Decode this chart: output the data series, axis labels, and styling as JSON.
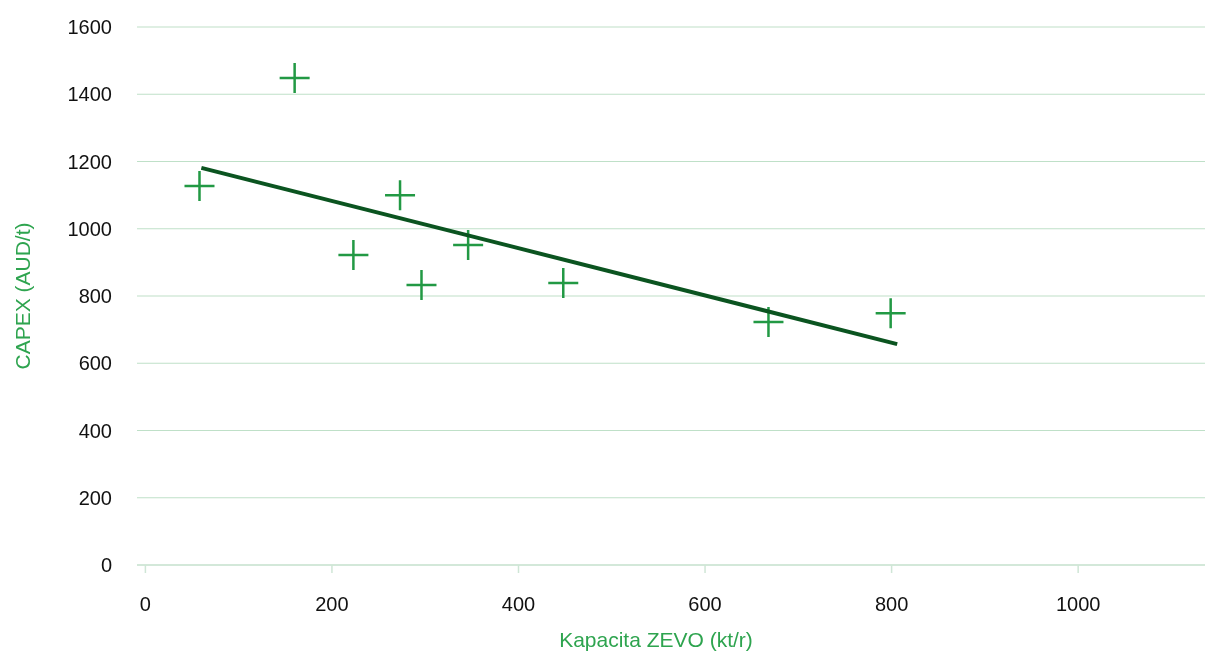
{
  "chart_data": {
    "type": "scatter",
    "xlabel": "Kapacita ZEVO (kt/r)",
    "ylabel": "CAPEX (AUD/t)",
    "xlim": [
      -9,
      1136
    ],
    "ylim": [
      0,
      1600
    ],
    "xticks": [
      0,
      200,
      400,
      600,
      800,
      1000
    ],
    "yticks": [
      0,
      200,
      400,
      600,
      800,
      1000,
      1200,
      1400,
      1600
    ],
    "grid": "y",
    "series": [
      {
        "color": "#229944",
        "marker": "cross",
        "x": [
          58,
          160,
          223,
          273,
          296,
          346,
          448,
          668,
          799
        ],
        "values": [
          1127,
          1448,
          922,
          1100,
          833,
          952,
          839,
          723,
          749
        ]
      },
      {
        "type": "line",
        "color": "#0b5420",
        "line_style": "solid",
        "x": [
          60,
          806
        ],
        "values": [
          1181,
          657
        ]
      }
    ]
  }
}
